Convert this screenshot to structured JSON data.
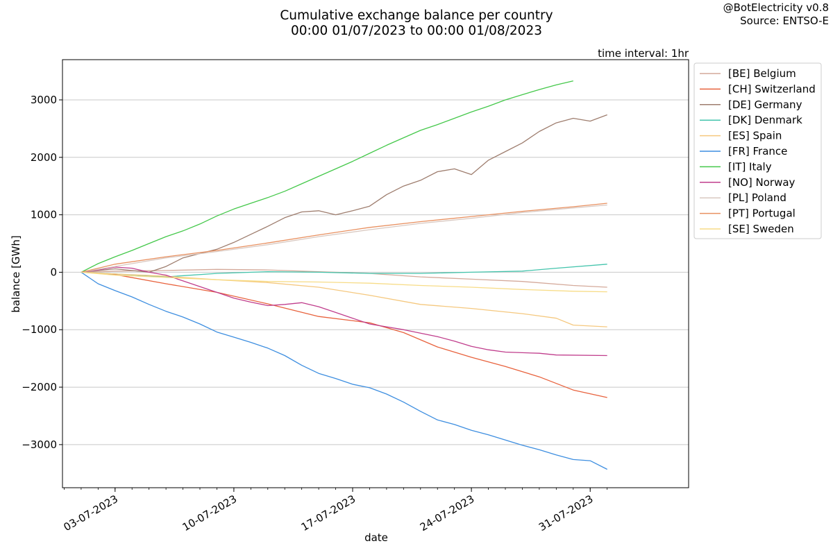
{
  "header": {
    "title_line1": "Cumulative exchange balance per country",
    "title_line2": "00:00 01/07/2023 to 00:00 01/08/2023",
    "credit_line1": "@BotElectricity v0.8",
    "credit_line2": "Source: ENTSO-E",
    "interval_label": "time interval: 1hr"
  },
  "chart_data": {
    "type": "line",
    "title": "Cumulative exchange balance per country",
    "subtitle": "00:00 01/07/2023 to 00:00 01/08/2023",
    "xlabel": "date",
    "ylabel": "balance [GWh]",
    "x_unit": "day of July 2023",
    "xlim": [
      -0.1,
      36.8
    ],
    "ylim": [
      -3750,
      3700
    ],
    "x_ticks": [
      {
        "day": 3,
        "label": "03-07-2023"
      },
      {
        "day": 10,
        "label": "10-07-2023"
      },
      {
        "day": 17,
        "label": "17-07-2023"
      },
      {
        "day": 24,
        "label": "24-07-2023"
      },
      {
        "day": 31,
        "label": "31-07-2023"
      }
    ],
    "y_ticks": [
      {
        "value": 3000,
        "label": "3000"
      },
      {
        "value": 2000,
        "label": "2000"
      },
      {
        "value": 1000,
        "label": "1000"
      },
      {
        "value": 0,
        "label": "0"
      },
      {
        "value": -1000,
        "label": "−1000"
      },
      {
        "value": -2000,
        "label": "−2000"
      },
      {
        "value": -3000,
        "label": "−3000"
      }
    ],
    "grid": "horizontal",
    "legend_position": "outside right, top",
    "series": [
      {
        "name": "[BE] Belgium",
        "color": "#d4a99a",
        "points": [
          [
            1,
            0
          ],
          [
            3,
            20
          ],
          [
            6,
            30
          ],
          [
            9,
            50
          ],
          [
            12,
            40
          ],
          [
            15,
            10
          ],
          [
            18,
            -20
          ],
          [
            21,
            -80
          ],
          [
            24,
            -120
          ],
          [
            27,
            -160
          ],
          [
            30,
            -230
          ],
          [
            32,
            -260
          ]
        ]
      },
      {
        "name": "[CH] Switzerland",
        "color": "#e8623d",
        "points": [
          [
            1,
            0
          ],
          [
            3,
            -40
          ],
          [
            6,
            -200
          ],
          [
            9,
            -350
          ],
          [
            12,
            -550
          ],
          [
            15,
            -770
          ],
          [
            18,
            -880
          ],
          [
            20,
            -1050
          ],
          [
            22,
            -1300
          ],
          [
            24,
            -1480
          ],
          [
            26,
            -1640
          ],
          [
            28,
            -1820
          ],
          [
            30,
            -2050
          ],
          [
            32,
            -2180
          ]
        ]
      },
      {
        "name": "[DE] Germany",
        "color": "#9e7d6e",
        "points": [
          [
            1,
            0
          ],
          [
            3,
            60
          ],
          [
            5,
            0
          ],
          [
            6,
            100
          ],
          [
            7,
            250
          ],
          [
            9,
            400
          ],
          [
            10,
            520
          ],
          [
            11,
            660
          ],
          [
            12,
            800
          ],
          [
            13,
            950
          ],
          [
            14,
            1050
          ],
          [
            15,
            1070
          ],
          [
            16,
            1000
          ],
          [
            17,
            1070
          ],
          [
            18,
            1150
          ],
          [
            19,
            1350
          ],
          [
            20,
            1500
          ],
          [
            21,
            1600
          ],
          [
            22,
            1750
          ],
          [
            23,
            1800
          ],
          [
            24,
            1700
          ],
          [
            25,
            1950
          ],
          [
            26,
            2100
          ],
          [
            27,
            2250
          ],
          [
            28,
            2450
          ],
          [
            29,
            2600
          ],
          [
            30,
            2680
          ],
          [
            31,
            2630
          ],
          [
            32,
            2740
          ]
        ]
      },
      {
        "name": "[DK] Denmark",
        "color": "#43c4ac",
        "points": [
          [
            1,
            0
          ],
          [
            3,
            -30
          ],
          [
            6,
            -80
          ],
          [
            9,
            -20
          ],
          [
            12,
            10
          ],
          [
            15,
            0
          ],
          [
            18,
            -20
          ],
          [
            21,
            -20
          ],
          [
            24,
            0
          ],
          [
            27,
            20
          ],
          [
            29,
            70
          ],
          [
            32,
            140
          ]
        ]
      },
      {
        "name": "[ES] Spain",
        "color": "#f5c87e",
        "points": [
          [
            1,
            0
          ],
          [
            3,
            -30
          ],
          [
            6,
            -70
          ],
          [
            9,
            -130
          ],
          [
            12,
            -180
          ],
          [
            15,
            -260
          ],
          [
            18,
            -400
          ],
          [
            21,
            -560
          ],
          [
            24,
            -630
          ],
          [
            27,
            -720
          ],
          [
            29,
            -800
          ],
          [
            30,
            -920
          ],
          [
            32,
            -950
          ]
        ]
      },
      {
        "name": "[FR] France",
        "color": "#3d8ee0",
        "points": [
          [
            1,
            0
          ],
          [
            2,
            -200
          ],
          [
            3,
            -320
          ],
          [
            4,
            -430
          ],
          [
            5,
            -560
          ],
          [
            6,
            -680
          ],
          [
            7,
            -780
          ],
          [
            8,
            -900
          ],
          [
            9,
            -1040
          ],
          [
            10,
            -1130
          ],
          [
            11,
            -1220
          ],
          [
            12,
            -1320
          ],
          [
            13,
            -1450
          ],
          [
            14,
            -1620
          ],
          [
            15,
            -1760
          ],
          [
            16,
            -1850
          ],
          [
            17,
            -1950
          ],
          [
            18,
            -2010
          ],
          [
            19,
            -2120
          ],
          [
            20,
            -2260
          ],
          [
            21,
            -2420
          ],
          [
            22,
            -2570
          ],
          [
            23,
            -2650
          ],
          [
            24,
            -2750
          ],
          [
            25,
            -2830
          ],
          [
            26,
            -2920
          ],
          [
            27,
            -3010
          ],
          [
            28,
            -3090
          ],
          [
            29,
            -3180
          ],
          [
            30,
            -3260
          ],
          [
            31,
            -3280
          ],
          [
            32,
            -3430
          ]
        ]
      },
      {
        "name": "[IT] Italy",
        "color": "#44c84a",
        "points": [
          [
            1,
            0
          ],
          [
            2,
            150
          ],
          [
            3,
            270
          ],
          [
            4,
            380
          ],
          [
            5,
            500
          ],
          [
            6,
            620
          ],
          [
            7,
            720
          ],
          [
            8,
            840
          ],
          [
            9,
            980
          ],
          [
            10,
            1100
          ],
          [
            11,
            1200
          ],
          [
            12,
            1300
          ],
          [
            13,
            1410
          ],
          [
            14,
            1540
          ],
          [
            15,
            1670
          ],
          [
            16,
            1800
          ],
          [
            17,
            1930
          ],
          [
            18,
            2070
          ],
          [
            19,
            2210
          ],
          [
            20,
            2340
          ],
          [
            21,
            2470
          ],
          [
            22,
            2570
          ],
          [
            23,
            2680
          ],
          [
            24,
            2790
          ],
          [
            25,
            2890
          ],
          [
            26,
            3000
          ],
          [
            27,
            3090
          ],
          [
            28,
            3180
          ],
          [
            29,
            3260
          ],
          [
            30,
            3330
          ]
        ]
      },
      {
        "name": "[NO] Norway",
        "color": "#c03d8c",
        "points": [
          [
            1,
            0
          ],
          [
            2,
            40
          ],
          [
            3,
            90
          ],
          [
            4,
            70
          ],
          [
            5,
            0
          ],
          [
            6,
            -50
          ],
          [
            7,
            -150
          ],
          [
            8,
            -250
          ],
          [
            9,
            -350
          ],
          [
            10,
            -450
          ],
          [
            11,
            -520
          ],
          [
            12,
            -580
          ],
          [
            13,
            -560
          ],
          [
            14,
            -530
          ],
          [
            15,
            -600
          ],
          [
            16,
            -700
          ],
          [
            17,
            -800
          ],
          [
            18,
            -900
          ],
          [
            19,
            -950
          ],
          [
            20,
            -1000
          ],
          [
            21,
            -1060
          ],
          [
            22,
            -1120
          ],
          [
            23,
            -1200
          ],
          [
            24,
            -1290
          ],
          [
            25,
            -1350
          ],
          [
            26,
            -1390
          ],
          [
            27,
            -1400
          ],
          [
            28,
            -1410
          ],
          [
            29,
            -1440
          ],
          [
            32,
            -1450
          ]
        ]
      },
      {
        "name": "[PL] Poland",
        "color": "#d9c8c0",
        "points": [
          [
            1,
            0
          ],
          [
            3,
            100
          ],
          [
            6,
            250
          ],
          [
            9,
            360
          ],
          [
            12,
            480
          ],
          [
            15,
            620
          ],
          [
            18,
            740
          ],
          [
            21,
            850
          ],
          [
            24,
            940
          ],
          [
            27,
            1040
          ],
          [
            30,
            1120
          ],
          [
            32,
            1170
          ]
        ]
      },
      {
        "name": "[PT] Portugal",
        "color": "#e89060",
        "points": [
          [
            1,
            0
          ],
          [
            3,
            140
          ],
          [
            6,
            270
          ],
          [
            9,
            380
          ],
          [
            12,
            510
          ],
          [
            15,
            650
          ],
          [
            18,
            780
          ],
          [
            21,
            880
          ],
          [
            24,
            970
          ],
          [
            27,
            1060
          ],
          [
            30,
            1140
          ],
          [
            32,
            1200
          ]
        ]
      },
      {
        "name": "[SE] Sweden",
        "color": "#f7dc87",
        "points": [
          [
            1,
            0
          ],
          [
            3,
            -50
          ],
          [
            6,
            -90
          ],
          [
            9,
            -130
          ],
          [
            12,
            -160
          ],
          [
            15,
            -170
          ],
          [
            18,
            -190
          ],
          [
            21,
            -230
          ],
          [
            24,
            -260
          ],
          [
            27,
            -300
          ],
          [
            30,
            -330
          ],
          [
            32,
            -340
          ]
        ]
      }
    ]
  }
}
